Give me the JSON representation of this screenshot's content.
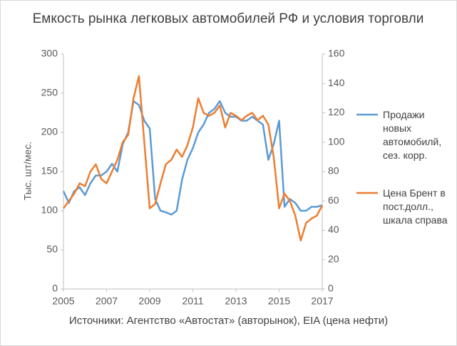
{
  "chart_data": {
    "type": "line",
    "title": "Емкость рынка легковых автомобилей РФ и условия торговли",
    "ylabel": "Тыс. шт/мес.",
    "source": "Источники: Агентство «Автостат» (авторынок), EIA (цена нефти)",
    "x": [
      2005,
      2005.25,
      2005.5,
      2005.75,
      2006,
      2006.25,
      2006.5,
      2006.75,
      2007,
      2007.25,
      2007.5,
      2007.75,
      2008,
      2008.25,
      2008.5,
      2008.75,
      2009,
      2009.25,
      2009.5,
      2009.75,
      2010,
      2010.25,
      2010.5,
      2010.75,
      2011,
      2011.25,
      2011.5,
      2011.75,
      2012,
      2012.25,
      2012.5,
      2012.75,
      2013,
      2013.25,
      2013.5,
      2013.75,
      2014,
      2014.25,
      2014.5,
      2014.75,
      2015,
      2015.25,
      2015.5,
      2015.75,
      2016,
      2016.25,
      2016.5,
      2016.75,
      2017
    ],
    "xlim": [
      2005,
      2017
    ],
    "xticks": [
      2005,
      2007,
      2009,
      2011,
      2013,
      2015,
      2017
    ],
    "ylim": [
      0,
      300
    ],
    "yticks": [
      0,
      50,
      100,
      150,
      200,
      250,
      300
    ],
    "y2lim": [
      0,
      160
    ],
    "y2ticks": [
      0,
      20,
      40,
      60,
      80,
      100,
      120,
      140,
      160
    ],
    "series": [
      {
        "name": "Продажи новых автомобилй, сез. корр.",
        "color": "#5b9bd5",
        "values": [
          125,
          110,
          125,
          130,
          120,
          135,
          145,
          145,
          150,
          160,
          150,
          185,
          200,
          240,
          235,
          215,
          205,
          115,
          100,
          98,
          95,
          100,
          140,
          165,
          180,
          200,
          210,
          225,
          230,
          240,
          225,
          220,
          220,
          215,
          215,
          220,
          215,
          210,
          165,
          185,
          215,
          105,
          115,
          110,
          100,
          100,
          105,
          105,
          107
        ]
      },
      {
        "name": "Цена Брент в пост.долл., шкала справа",
        "color": "#ed7d31",
        "axis": "y2",
        "values": [
          55,
          60,
          65,
          72,
          70,
          80,
          85,
          75,
          72,
          80,
          88,
          100,
          105,
          130,
          145,
          100,
          55,
          58,
          72,
          85,
          88,
          95,
          90,
          98,
          110,
          130,
          120,
          118,
          120,
          125,
          110,
          120,
          118,
          115,
          118,
          120,
          115,
          118,
          112,
          90,
          55,
          65,
          60,
          50,
          33,
          45,
          48,
          50,
          57
        ]
      }
    ]
  }
}
